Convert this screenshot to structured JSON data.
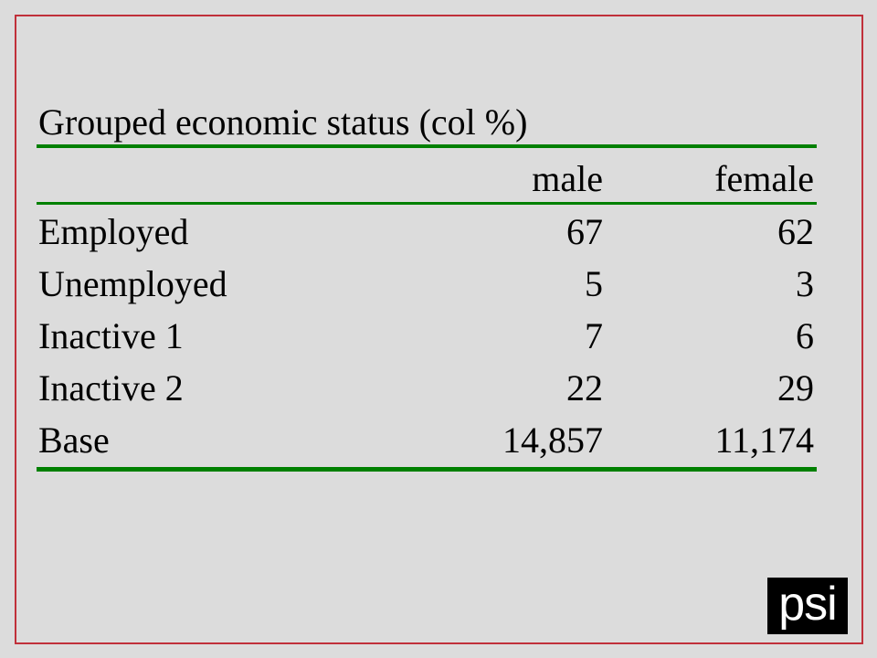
{
  "table": {
    "title": "Grouped economic status (col %)",
    "columns": [
      "male",
      "female"
    ],
    "rows": [
      [
        "Employed",
        "67",
        "62"
      ],
      [
        "Unemployed",
        "5",
        "3"
      ],
      [
        "Inactive 1",
        "7",
        "6"
      ],
      [
        "Inactive 2",
        "22",
        "29"
      ],
      [
        "Base",
        "14,857",
        "11,174"
      ]
    ]
  },
  "logo": "psi"
}
